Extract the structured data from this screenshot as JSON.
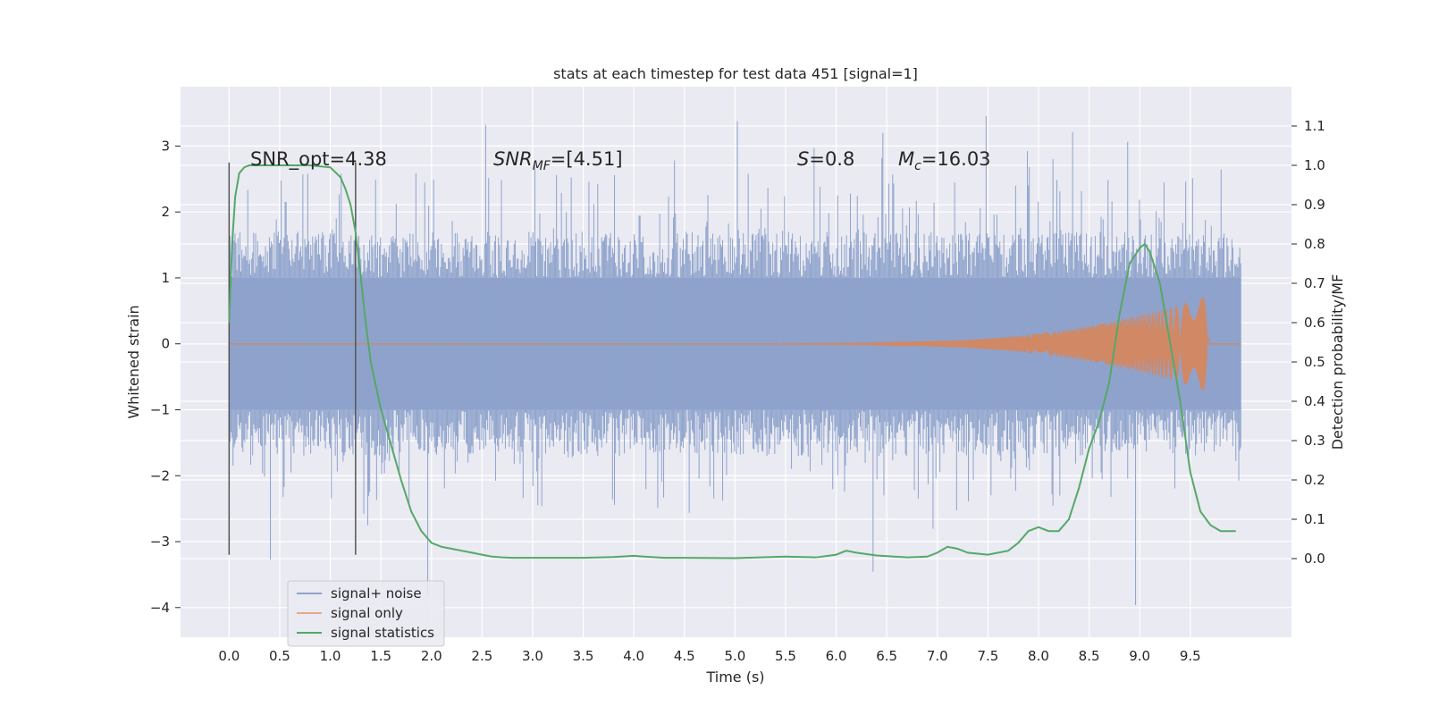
{
  "chart_data": {
    "type": "line",
    "title": "stats at each timestep for test data 451 [signal=1]",
    "xlabel": "Time (s)",
    "ylabel": "Whitened strain",
    "ylabel_right": "Detection probability/MF",
    "xlim": [
      -0.48,
      10.5
    ],
    "ylim": [
      -4.45,
      3.9
    ],
    "ylim_right": [
      -0.2,
      1.2
    ],
    "xticks": [
      "0.0",
      "0.5",
      "1.0",
      "1.5",
      "2.0",
      "2.5",
      "3.0",
      "3.5",
      "4.0",
      "4.5",
      "5.0",
      "5.5",
      "6.0",
      "6.5",
      "7.0",
      "7.5",
      "8.0",
      "8.5",
      "9.0",
      "9.5"
    ],
    "yticks": [
      "3",
      "2",
      "1",
      "0",
      "−1",
      "−2",
      "−3",
      "−4"
    ],
    "yticks_right": [
      "1.1",
      "1.0",
      "0.9",
      "0.8",
      "0.7",
      "0.6",
      "0.5",
      "0.4",
      "0.3",
      "0.2",
      "0.1",
      "0.0"
    ],
    "grid": true,
    "legend_placement": "lower-left",
    "background": "#eaeaf2",
    "annotations": {
      "snr_opt": "SNR_opt=4.38",
      "snr_mf_main": "SNR",
      "snr_mf_sub": "MF",
      "snr_mf_value": "=[4.51]",
      "s_symbol": "S",
      "s_value": "=0.8",
      "mc_symbol": "M",
      "mc_sub": "c",
      "mc_value": "=16.03"
    },
    "vertical_markers": [
      0.0,
      1.25
    ],
    "noise": {
      "x_range": [
        0.0,
        10.0
      ],
      "typical_min": -1.7,
      "typical_max": 1.7,
      "extreme_min": -4.0,
      "extreme_max": 3.6,
      "color": "#8fa3cc"
    },
    "signal": {
      "start": 5.4,
      "end": 9.67,
      "peak_amplitude": 0.72,
      "color": "#dd8452"
    },
    "series": [
      {
        "name": "signal+ noise",
        "color": "#4c72b0"
      },
      {
        "name": "signal only",
        "color": "#dd8452"
      },
      {
        "name": "signal statistics",
        "color": "#55a868",
        "x": [
          0.0,
          0.03,
          0.06,
          0.1,
          0.15,
          0.2,
          0.3,
          0.5,
          0.8,
          1.0,
          1.1,
          1.15,
          1.2,
          1.25,
          1.3,
          1.35,
          1.4,
          1.5,
          1.6,
          1.7,
          1.8,
          1.9,
          2.0,
          2.1,
          2.2,
          2.3,
          2.4,
          2.5,
          2.6,
          2.7,
          2.8,
          3.0,
          3.5,
          3.8,
          4.0,
          4.1,
          4.3,
          4.5,
          5.0,
          5.5,
          5.8,
          6.0,
          6.1,
          6.2,
          6.4,
          6.7,
          6.9,
          7.0,
          7.1,
          7.2,
          7.3,
          7.5,
          7.7,
          7.8,
          7.9,
          8.0,
          8.1,
          8.2,
          8.3,
          8.4,
          8.5,
          8.6,
          8.7,
          8.8,
          8.9,
          9.0,
          9.05,
          9.1,
          9.2,
          9.3,
          9.4,
          9.5,
          9.6,
          9.7,
          9.8,
          9.9,
          9.95
        ],
        "y": [
          0.6,
          0.8,
          0.92,
          0.98,
          0.995,
          1.0,
          1.0,
          1.0,
          1.0,
          0.995,
          0.97,
          0.94,
          0.9,
          0.83,
          0.72,
          0.6,
          0.5,
          0.38,
          0.29,
          0.2,
          0.12,
          0.07,
          0.04,
          0.03,
          0.025,
          0.02,
          0.015,
          0.01,
          0.005,
          0.003,
          0.002,
          0.002,
          0.002,
          0.004,
          0.007,
          0.005,
          0.002,
          0.002,
          0.001,
          0.005,
          0.003,
          0.01,
          0.02,
          0.015,
          0.008,
          0.003,
          0.005,
          0.015,
          0.03,
          0.025,
          0.015,
          0.01,
          0.02,
          0.04,
          0.07,
          0.08,
          0.07,
          0.07,
          0.1,
          0.18,
          0.28,
          0.35,
          0.45,
          0.62,
          0.75,
          0.79,
          0.8,
          0.78,
          0.7,
          0.55,
          0.4,
          0.22,
          0.12,
          0.085,
          0.07,
          0.07,
          0.07
        ]
      }
    ]
  }
}
